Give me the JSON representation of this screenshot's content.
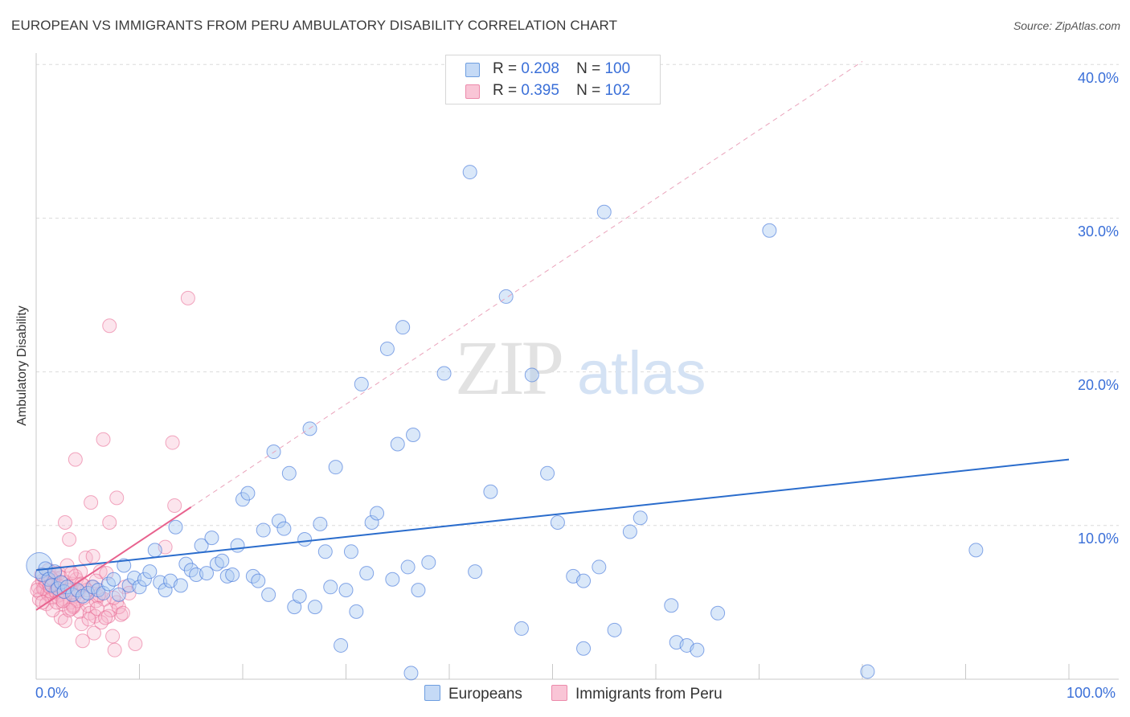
{
  "title": "EUROPEAN VS IMMIGRANTS FROM PERU AMBULATORY DISABILITY CORRELATION CHART",
  "source": "Source: ZipAtlas.com",
  "colors": {
    "blue": "#3a6fd8",
    "blue_fill": "#aecbf2",
    "blue_line": "#2a6ccc",
    "pink": "#e8628e",
    "pink_fill": "#f6b5cb"
  },
  "legend": {
    "rows": [
      {
        "r_label": "R =",
        "r_value": "0.208",
        "n_label": "N =",
        "n_value": "100"
      },
      {
        "r_label": "R =",
        "r_value": "0.395",
        "n_label": "N =",
        "n_value": "102"
      }
    ]
  },
  "bottom_legend": {
    "europeans": "Europeans",
    "peru": "Immigrants from Peru"
  },
  "watermark": {
    "zip": "ZIP",
    "atlas": "atlas"
  },
  "chart_data": {
    "type": "scatter",
    "title": "EUROPEAN VS IMMIGRANTS FROM PERU AMBULATORY DISABILITY CORRELATION CHART",
    "xlabel": "",
    "ylabel": "Ambulatory Disability",
    "xlim": [
      0,
      100
    ],
    "ylim": [
      0,
      42
    ],
    "x_tick_labels": [
      "0.0%",
      "100.0%"
    ],
    "y_ticks": [
      10,
      20,
      30,
      40
    ],
    "y_tick_labels": [
      "10.0%",
      "20.0%",
      "30.0%",
      "40.0%"
    ],
    "grid": true,
    "series": [
      {
        "name": "Europeans",
        "R": 0.208,
        "N": 100,
        "trend": {
          "x": [
            0,
            100
          ],
          "y": [
            7.1,
            14.3
          ]
        },
        "points": [
          [
            0.3,
            7.4
          ],
          [
            0.6,
            6.8
          ],
          [
            0.9,
            7.2
          ],
          [
            1.2,
            6.5
          ],
          [
            1.5,
            6.1
          ],
          [
            1.8,
            7.0
          ],
          [
            2.1,
            5.9
          ],
          [
            2.4,
            6.3
          ],
          [
            2.7,
            5.7
          ],
          [
            3.0,
            6.0
          ],
          [
            3.5,
            5.5
          ],
          [
            4.0,
            5.8
          ],
          [
            4.5,
            5.4
          ],
          [
            5.0,
            5.6
          ],
          [
            5.5,
            6.0
          ],
          [
            6.0,
            5.8
          ],
          [
            6.5,
            5.6
          ],
          [
            7.0,
            6.2
          ],
          [
            7.5,
            6.5
          ],
          [
            8.0,
            5.5
          ],
          [
            8.5,
            7.4
          ],
          [
            9.0,
            6.1
          ],
          [
            9.5,
            6.6
          ],
          [
            10.0,
            6.0
          ],
          [
            10.5,
            6.5
          ],
          [
            11.0,
            7.0
          ],
          [
            11.5,
            8.4
          ],
          [
            12.0,
            6.3
          ],
          [
            12.5,
            5.8
          ],
          [
            13.0,
            6.4
          ],
          [
            13.5,
            9.9
          ],
          [
            14.0,
            6.1
          ],
          [
            14.5,
            7.5
          ],
          [
            15.0,
            7.1
          ],
          [
            15.5,
            6.8
          ],
          [
            16.0,
            8.7
          ],
          [
            16.5,
            6.9
          ],
          [
            17.0,
            9.2
          ],
          [
            17.5,
            7.5
          ],
          [
            18.0,
            7.7
          ],
          [
            18.5,
            6.7
          ],
          [
            19.0,
            6.8
          ],
          [
            19.5,
            8.7
          ],
          [
            20.0,
            11.7
          ],
          [
            20.5,
            12.1
          ],
          [
            21.0,
            6.7
          ],
          [
            21.5,
            6.4
          ],
          [
            22.0,
            9.7
          ],
          [
            22.5,
            5.5
          ],
          [
            23.0,
            14.8
          ],
          [
            23.5,
            10.3
          ],
          [
            24.0,
            9.8
          ],
          [
            24.5,
            13.4
          ],
          [
            25.0,
            4.7
          ],
          [
            25.5,
            5.4
          ],
          [
            26.0,
            9.1
          ],
          [
            26.5,
            16.3
          ],
          [
            27.0,
            4.7
          ],
          [
            27.5,
            10.1
          ],
          [
            28.0,
            8.3
          ],
          [
            28.5,
            6.0
          ],
          [
            29.0,
            13.8
          ],
          [
            29.5,
            2.2
          ],
          [
            30.0,
            5.8
          ],
          [
            30.5,
            8.3
          ],
          [
            31.0,
            4.4
          ],
          [
            31.5,
            19.2
          ],
          [
            32.0,
            6.9
          ],
          [
            32.5,
            10.2
          ],
          [
            33.0,
            10.8
          ],
          [
            34.0,
            21.5
          ],
          [
            34.5,
            6.5
          ],
          [
            35.0,
            15.3
          ],
          [
            35.5,
            22.9
          ],
          [
            36.0,
            7.3
          ],
          [
            36.5,
            15.9
          ],
          [
            37.0,
            5.8
          ],
          [
            38.0,
            7.6
          ],
          [
            39.5,
            19.9
          ],
          [
            42.0,
            33.0
          ],
          [
            42.5,
            7.0
          ],
          [
            44.0,
            12.2
          ],
          [
            45.5,
            24.9
          ],
          [
            47.0,
            3.3
          ],
          [
            48.0,
            19.8
          ],
          [
            49.5,
            13.4
          ],
          [
            50.5,
            10.2
          ],
          [
            52.0,
            6.7
          ],
          [
            53.0,
            6.4
          ],
          [
            53.0,
            2.0
          ],
          [
            55.0,
            30.4
          ],
          [
            54.5,
            7.3
          ],
          [
            56.0,
            3.2
          ],
          [
            57.5,
            9.6
          ],
          [
            58.5,
            10.5
          ],
          [
            62.0,
            2.4
          ],
          [
            61.5,
            4.8
          ],
          [
            63.0,
            2.2
          ],
          [
            64.0,
            1.9
          ],
          [
            66.0,
            4.3
          ],
          [
            71.0,
            29.2
          ],
          [
            80.5,
            0.5
          ],
          [
            91.0,
            8.4
          ],
          [
            36.3,
            0.4
          ]
        ]
      },
      {
        "name": "Immigrants from Peru",
        "R": 0.395,
        "N": 102,
        "trend": {
          "x": [
            0,
            15
          ],
          "y": [
            4.5,
            11.2
          ]
        },
        "trend_ext": {
          "x": [
            15,
            80
          ],
          "y": [
            11.2,
            40.2
          ]
        },
        "points": [
          [
            0.2,
            6.0
          ],
          [
            0.4,
            5.6
          ],
          [
            0.6,
            6.4
          ],
          [
            0.8,
            5.9
          ],
          [
            1.0,
            6.2
          ],
          [
            1.2,
            5.5
          ],
          [
            1.4,
            6.1
          ],
          [
            1.6,
            5.8
          ],
          [
            1.8,
            6.6
          ],
          [
            2.0,
            5.4
          ],
          [
            0.3,
            5.2
          ],
          [
            0.5,
            6.8
          ],
          [
            0.7,
            5.9
          ],
          [
            0.9,
            6.3
          ],
          [
            1.1,
            5.6
          ],
          [
            1.3,
            6.0
          ],
          [
            1.5,
            5.3
          ],
          [
            1.7,
            6.4
          ],
          [
            1.9,
            5.7
          ],
          [
            2.1,
            6.1
          ],
          [
            2.3,
            5.5
          ],
          [
            2.5,
            6.0
          ],
          [
            2.7,
            5.2
          ],
          [
            2.9,
            6.3
          ],
          [
            3.1,
            5.8
          ],
          [
            3.3,
            5.0
          ],
          [
            3.5,
            6.2
          ],
          [
            3.7,
            5.4
          ],
          [
            3.9,
            6.5
          ],
          [
            4.1,
            5.7
          ],
          [
            2.2,
            6.9
          ],
          [
            2.6,
            4.9
          ],
          [
            3.0,
            7.4
          ],
          [
            3.4,
            4.6
          ],
          [
            3.8,
            6.7
          ],
          [
            4.2,
            4.4
          ],
          [
            4.6,
            6.1
          ],
          [
            5.0,
            4.8
          ],
          [
            5.4,
            6.0
          ],
          [
            5.8,
            5.1
          ],
          [
            2.4,
            4.0
          ],
          [
            2.8,
            3.8
          ],
          [
            3.2,
            9.1
          ],
          [
            3.6,
            4.7
          ],
          [
            4.0,
            5.1
          ],
          [
            4.4,
            3.6
          ],
          [
            4.8,
            7.9
          ],
          [
            5.2,
            4.3
          ],
          [
            5.6,
            3.0
          ],
          [
            6.0,
            5.4
          ],
          [
            2.8,
            10.2
          ],
          [
            3.8,
            14.3
          ],
          [
            5.3,
            11.5
          ],
          [
            6.5,
            15.6
          ],
          [
            7.1,
            10.2
          ],
          [
            7.8,
            11.8
          ],
          [
            7.1,
            23.0
          ],
          [
            13.2,
            15.4
          ],
          [
            13.4,
            11.3
          ],
          [
            14.7,
            24.8
          ],
          [
            6.2,
            7.0
          ],
          [
            6.6,
            5.2
          ],
          [
            7.0,
            4.1
          ],
          [
            7.4,
            2.8
          ],
          [
            7.8,
            5.0
          ],
          [
            8.2,
            4.2
          ],
          [
            8.6,
            6.0
          ],
          [
            9.0,
            5.6
          ],
          [
            9.6,
            2.3
          ],
          [
            12.5,
            8.6
          ],
          [
            4.5,
            2.5
          ],
          [
            5.7,
            4.1
          ],
          [
            6.3,
            3.7
          ],
          [
            7.6,
            1.9
          ],
          [
            5.5,
            8.0
          ],
          [
            4.3,
            7.0
          ],
          [
            3.6,
            4.8
          ],
          [
            6.8,
            6.9
          ],
          [
            5.9,
            4.6
          ],
          [
            4.9,
            5.8
          ],
          [
            1.0,
            4.9
          ],
          [
            1.6,
            4.5
          ],
          [
            2.0,
            5.0
          ],
          [
            2.4,
            6.6
          ],
          [
            3.2,
            4.5
          ],
          [
            4.6,
            5.3
          ],
          [
            5.1,
            3.9
          ],
          [
            6.1,
            5.5
          ],
          [
            7.2,
            4.5
          ],
          [
            8.0,
            4.7
          ],
          [
            1.2,
            7.1
          ],
          [
            1.8,
            6.9
          ],
          [
            2.6,
            5.1
          ],
          [
            3.4,
            6.9
          ],
          [
            4.4,
            6.2
          ],
          [
            5.8,
            6.4
          ],
          [
            6.7,
            4.0
          ],
          [
            7.5,
            5.3
          ],
          [
            8.4,
            4.3
          ],
          [
            0.1,
            5.8
          ],
          [
            0.6,
            5.0
          ],
          [
            1.4,
            6.6
          ]
        ]
      }
    ]
  }
}
